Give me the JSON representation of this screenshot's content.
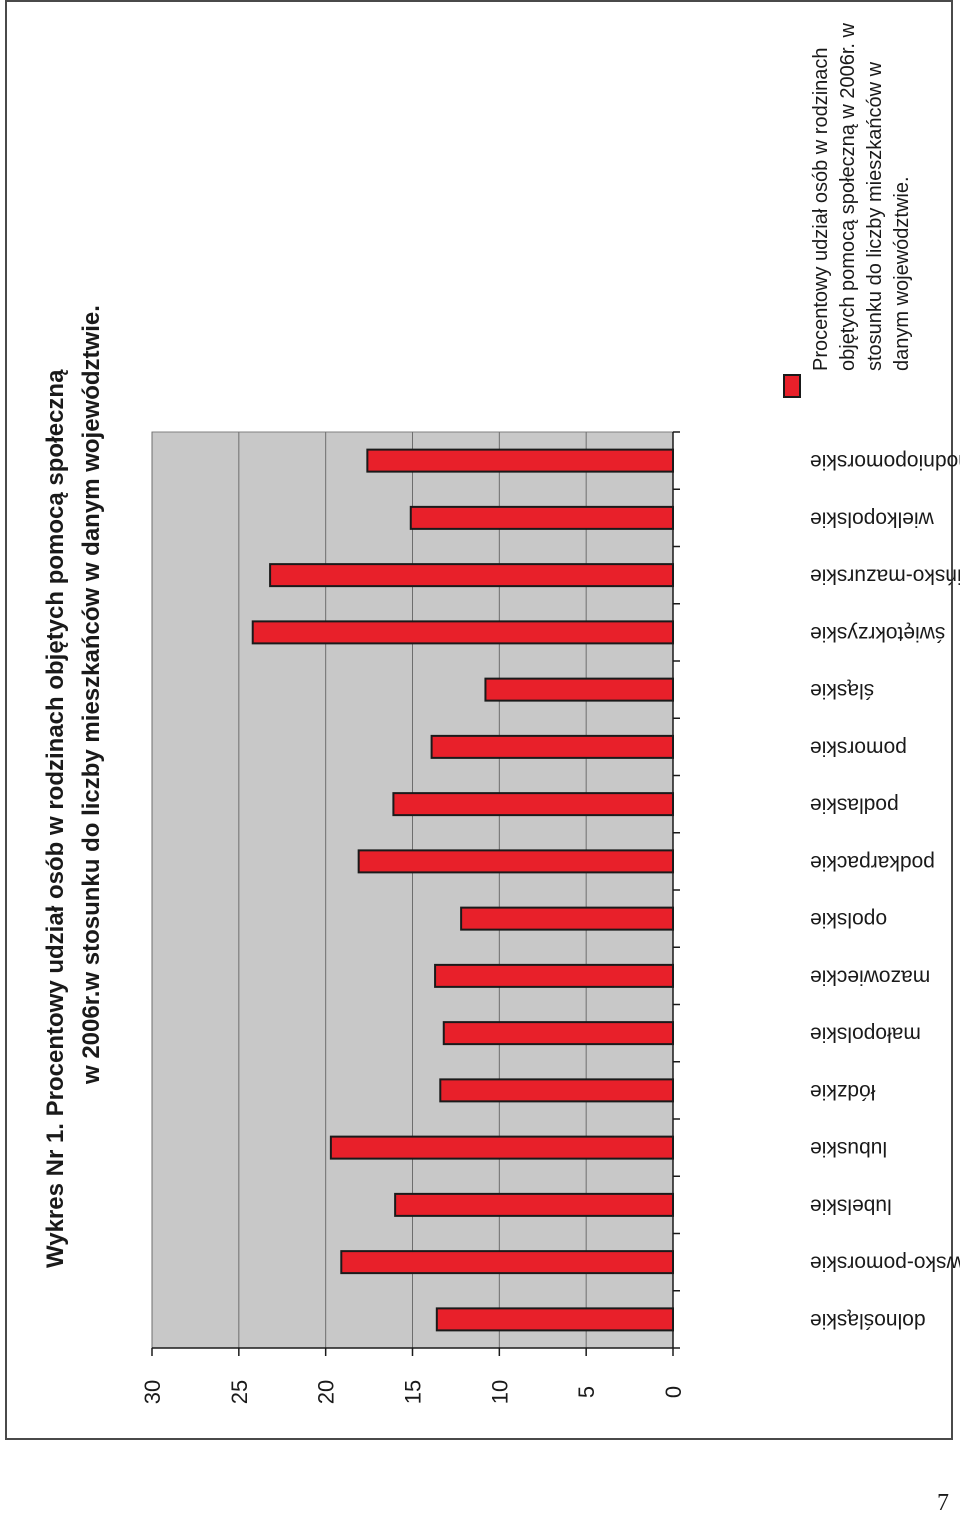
{
  "title": {
    "line1": "Wykres Nr 1. Procentowy udział osób w rodzinach objętych pomocą społeczną",
    "line2": "w 2006r.w stosunku do liczby mieszkańców w danym województwie."
  },
  "legend": {
    "label": "Procentowy udział osób w rodzinach objętych pomocą społeczną w 2006r. w stosunku do liczby mieszkańców w danym województwie."
  },
  "page_number": "7",
  "colors": {
    "bar": "#e8202a",
    "plot_bg": "#c8c8c8",
    "bar_border": "#1a1a1a"
  },
  "chart_data": {
    "type": "bar",
    "orientation": "rotated",
    "categories": [
      "dolnośląskie",
      "kujawsko-pomorskie",
      "lubelskie",
      "lubuskie",
      "łódzkie",
      "małopolskie",
      "mazowieckie",
      "opolskie",
      "podkarpackie",
      "podlaskie",
      "pomorskie",
      "śląskie",
      "świętokrzyskie",
      "warmińsko-mazurskie",
      "wielkopolskie",
      "zachodniopomorskie"
    ],
    "series": [
      {
        "name": "Procentowy udział osób w rodzinach objętych pomocą społeczną w 2006r. w stosunku do liczby mieszkańców w danym województwie.",
        "values": [
          13.6,
          19.1,
          16.0,
          19.7,
          13.4,
          13.2,
          13.7,
          12.2,
          18.1,
          16.1,
          13.9,
          10.8,
          24.2,
          23.2,
          15.1,
          17.6
        ]
      }
    ],
    "ylim": [
      0,
      30
    ],
    "ticks": [
      "0",
      "5",
      "10",
      "15",
      "20",
      "25",
      "30"
    ],
    "grid": true,
    "legend_position": "right"
  }
}
